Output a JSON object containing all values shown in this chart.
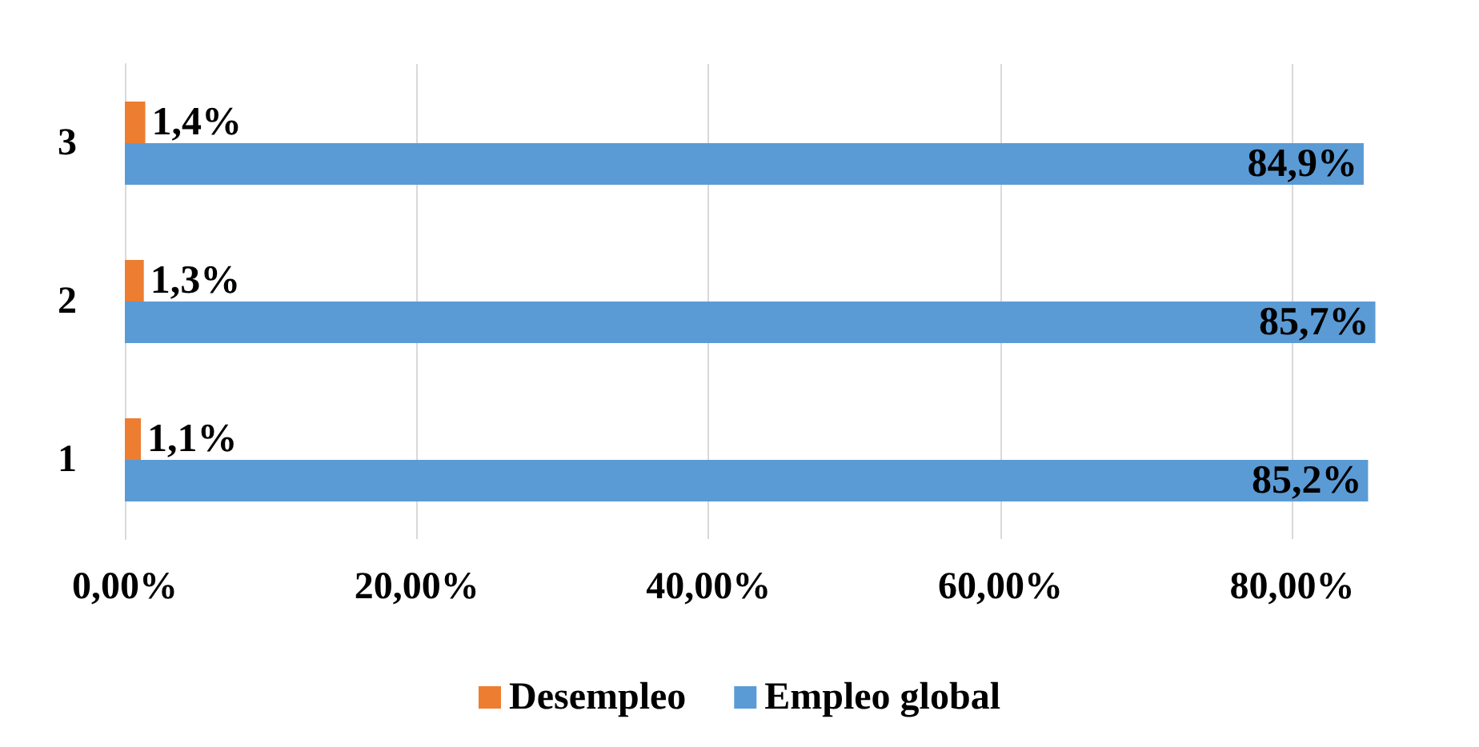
{
  "chart_data": {
    "type": "bar",
    "orientation": "horizontal",
    "categories": [
      "3",
      "2",
      "1"
    ],
    "series": [
      {
        "name": "Desempleo",
        "color": "#ed7d31",
        "values": [
          1.4,
          1.3,
          1.1
        ],
        "value_labels": [
          "1,4%",
          "1,3%",
          "1,1%"
        ]
      },
      {
        "name": "Empleo global",
        "color": "#5b9bd5",
        "values": [
          84.9,
          85.7,
          85.2
        ],
        "value_labels": [
          "84,9%",
          "85,7%",
          "85,2%"
        ]
      }
    ],
    "xlim": [
      0,
      86
    ],
    "xticks": [
      {
        "value": 0,
        "label": "0,00%"
      },
      {
        "value": 20,
        "label": "20,00%"
      },
      {
        "value": 40,
        "label": "40,00%"
      },
      {
        "value": 60,
        "label": "60,00%"
      },
      {
        "value": 80,
        "label": "80,00%"
      }
    ],
    "grid": "x",
    "legend": "bottom"
  }
}
